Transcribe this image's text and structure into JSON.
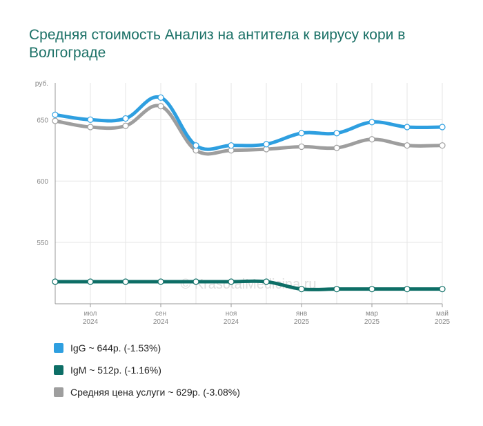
{
  "title": "Средняя стоимость Анализ на антитела к вирусу кори в Волгограде",
  "watermark": "© KrasotaiMedicina.ru",
  "chart_data": {
    "type": "line",
    "y_unit": "руб.",
    "ylim": [
      500,
      680
    ],
    "yticks": [
      550,
      600,
      650
    ],
    "grid": true,
    "x_ticks": [
      {
        "label": "июл",
        "year": "2024"
      },
      {
        "label": "сен",
        "year": "2024"
      },
      {
        "label": "ноя",
        "year": "2024"
      },
      {
        "label": "янв",
        "year": "2025"
      },
      {
        "label": "мар",
        "year": "2025"
      },
      {
        "label": "май",
        "year": "2025"
      }
    ],
    "x": [
      "2024-06",
      "2024-07",
      "2024-08",
      "2024-09",
      "2024-10",
      "2024-11",
      "2024-12",
      "2025-01",
      "2025-02",
      "2025-03",
      "2025-04",
      "2025-05"
    ],
    "series": [
      {
        "name": "IgG",
        "color": "#2e9fe0",
        "values": [
          654,
          650,
          651,
          668,
          629,
          629,
          630,
          639,
          639,
          648,
          644,
          644
        ]
      },
      {
        "name": "IgM",
        "color": "#0d6e66",
        "values": [
          518,
          518,
          518,
          518,
          518,
          518,
          518,
          512,
          512,
          512,
          512,
          512
        ]
      },
      {
        "name": "Средняя цена услуги",
        "color": "#9e9e9e",
        "values": [
          649,
          644,
          645,
          661,
          625,
          625,
          626,
          628,
          627,
          634,
          629,
          629
        ]
      }
    ],
    "legend": [
      {
        "text": "IgG ~ 644р. (-1.53%)",
        "color": "#2e9fe0"
      },
      {
        "text": "IgM ~ 512р. (-1.16%)",
        "color": "#0d6e66"
      },
      {
        "text": "Средняя цена услуги ~ 629р. (-3.08%)",
        "color": "#9e9e9e"
      }
    ]
  }
}
